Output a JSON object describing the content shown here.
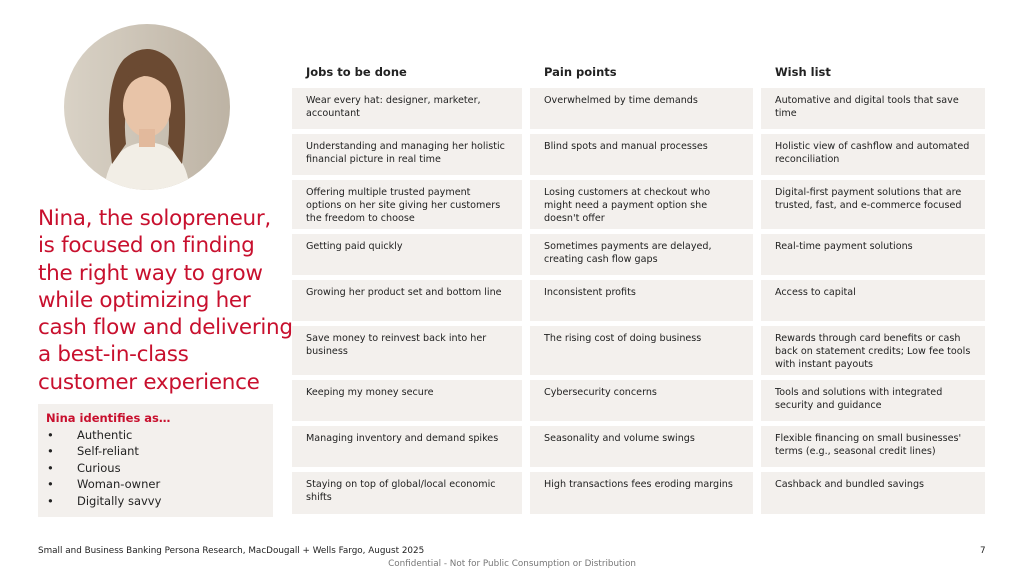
{
  "headline": [
    "Nina, the solopreneur,",
    "is focused on finding",
    "the right way to grow",
    "while optimizing her",
    "cash flow and delivering",
    "a best-in-class",
    "customer experience"
  ],
  "identifies": {
    "title": "Nina identifies as…",
    "items": [
      "Authentic",
      "Self-reliant",
      "Curious",
      "Woman-owner",
      "Digitally savvy"
    ]
  },
  "table": {
    "headers": [
      "Jobs to be done",
      "Pain points",
      "Wish list"
    ],
    "rows": [
      [
        "Wear every hat: designer, marketer, accountant",
        "Overwhelmed by time demands",
        "Automative and digital tools that save time"
      ],
      [
        "Understanding and managing her holistic financial picture in real time",
        "Blind spots and manual processes",
        "Holistic view of cashflow and automated reconciliation"
      ],
      [
        "Offering multiple trusted payment options on her site giving her customers the freedom to choose",
        "Losing customers at checkout who might need a payment option she doesn't offer",
        "Digital-first payment solutions that are trusted, fast, and e-commerce focused"
      ],
      [
        "Getting paid quickly",
        "Sometimes payments are delayed, creating cash flow gaps",
        "Real-time payment solutions"
      ],
      [
        "Growing her product set and bottom line",
        "Inconsistent profits",
        "Access to capital"
      ],
      [
        "Save money to reinvest back into her business",
        "The rising cost of doing business",
        "Rewards through card benefits or cash back on statement credits; Low fee tools with instant payouts"
      ],
      [
        "Keeping my money secure",
        "Cybersecurity concerns",
        "Tools and solutions with integrated security and guidance"
      ],
      [
        "Managing inventory and demand spikes",
        "Seasonality and volume swings",
        "Flexible financing on small businesses' terms (e.g., seasonal credit lines)"
      ],
      [
        "Staying on top of global/local economic shifts",
        "High transactions fees eroding margins",
        "Cashback and bundled savings"
      ]
    ]
  },
  "footer": {
    "source": "Small and Business Banking Persona Research, MacDougall + Wells Fargo,  August 2025",
    "page": "7",
    "confidential": "Confidential - Not for Public Consumption or Distribution"
  }
}
